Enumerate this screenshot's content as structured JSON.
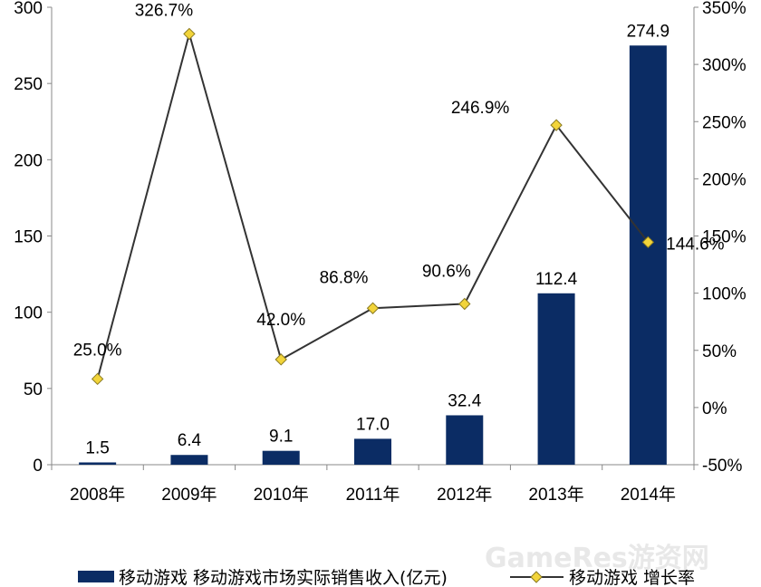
{
  "chart_data": {
    "type": "bar+line",
    "categories": [
      "2008年",
      "2009年",
      "2010年",
      "2011年",
      "2012年",
      "2013年",
      "2014年"
    ],
    "series": [
      {
        "name": "移动游戏 移动游戏市场实际销售收入(亿元)",
        "type": "bar",
        "axis": "left",
        "values": [
          1.5,
          6.4,
          9.1,
          17.0,
          32.4,
          112.4,
          274.9
        ],
        "labels": [
          "1.5",
          "6.4",
          "9.1",
          "17.0",
          "32.4",
          "112.4",
          "274.9"
        ],
        "color": "#0b2c64"
      },
      {
        "name": "移动游戏 增长率",
        "type": "line",
        "axis": "right",
        "values": [
          25.0,
          326.7,
          42.0,
          86.8,
          90.6,
          246.9,
          144.6
        ],
        "labels": [
          "25.0%",
          "326.7%",
          "42.0%",
          "86.8%",
          "90.6%",
          "246.9%",
          "144.6%"
        ],
        "color": "#333333",
        "marker_color": "#f2d43a"
      }
    ],
    "y_left": {
      "min": 0,
      "max": 300,
      "ticks": [
        "0",
        "50",
        "100",
        "150",
        "200",
        "250",
        "300"
      ]
    },
    "y_right": {
      "min": -50,
      "max": 350,
      "ticks": [
        "-50%",
        "0%",
        "50%",
        "100%",
        "150%",
        "200%",
        "250%",
        "300%",
        "350%"
      ]
    },
    "grid": false,
    "legend": "bottom"
  },
  "watermark": "GameRes游资网"
}
